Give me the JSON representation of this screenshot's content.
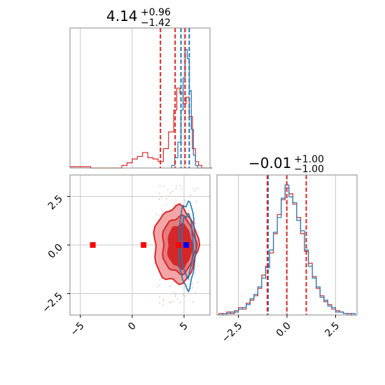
{
  "chart_data": [
    {
      "type": "histogram",
      "panel": "top-left marginal",
      "title_main": "4.14",
      "title_sup": "+0.96",
      "title_sub": "−1.42",
      "xlim": [
        -6,
        7.5
      ],
      "vlines_red": [
        2.72,
        4.14,
        5.1
      ],
      "vlines_blue": [
        4.7,
        5.5
      ],
      "series": [
        {
          "color": "#d62728",
          "bins": [
            [
              -6,
              0.01
            ],
            [
              -5,
              0.01
            ],
            [
              -4,
              0.0
            ],
            [
              -3,
              0.0
            ],
            [
              -2,
              0.0
            ],
            [
              -1,
              0.02
            ],
            [
              -0.5,
              0.04
            ],
            [
              0,
              0.07
            ],
            [
              0.5,
              0.09
            ],
            [
              1,
              0.12
            ],
            [
              1.5,
              0.08
            ],
            [
              2,
              0.07
            ],
            [
              2.5,
              0.05
            ],
            [
              3,
              0.15
            ],
            [
              3.5,
              0.28
            ],
            [
              4,
              0.45
            ],
            [
              4.3,
              0.62
            ],
            [
              4.6,
              0.58
            ],
            [
              4.9,
              0.5
            ],
            [
              5.2,
              0.55
            ],
            [
              5.5,
              0.4
            ],
            [
              5.8,
              0.15
            ],
            [
              6.1,
              0.05
            ],
            [
              6.4,
              0.02
            ],
            [
              6.7,
              0.0
            ]
          ]
        },
        {
          "color": "#1f77b4",
          "bins": [
            [
              3.8,
              0.02
            ],
            [
              4.1,
              0.08
            ],
            [
              4.4,
              0.2
            ],
            [
              4.7,
              0.45
            ],
            [
              4.9,
              0.7
            ],
            [
              5.1,
              0.92
            ],
            [
              5.3,
              0.85
            ],
            [
              5.5,
              0.6
            ],
            [
              5.7,
              0.3
            ],
            [
              5.9,
              0.1
            ],
            [
              6.1,
              0.02
            ],
            [
              6.3,
              0.0
            ]
          ]
        }
      ]
    },
    {
      "type": "scatter",
      "panel": "bottom-left 2D contour",
      "xlim": [
        -6,
        7.5
      ],
      "ylim": [
        -3.6,
        3.6
      ],
      "x_ticks": [
        "−5",
        "0",
        "5"
      ],
      "x_tick_values": [
        -5,
        0,
        5
      ],
      "y_ticks": [
        "2.5",
        "0.0",
        "−2.5"
      ],
      "y_tick_values": [
        2.5,
        0.0,
        -2.5
      ],
      "markers": [
        {
          "x": -3.8,
          "y": 0.0,
          "color": "#ff0000"
        },
        {
          "x": 1.1,
          "y": 0.0,
          "color": "#ff0000"
        },
        {
          "x": 4.5,
          "y": 0.0,
          "color": "#ff0000"
        },
        {
          "x": 5.2,
          "y": 0.0,
          "color": "#0000ff"
        }
      ],
      "contours_red": [
        {
          "cx": 4.2,
          "cy": 0.0,
          "rx": 2.1,
          "ry": 1.95,
          "fill": "#f4a6a7"
        },
        {
          "cx": 4.5,
          "cy": 0.0,
          "rx": 1.6,
          "ry": 1.45,
          "fill": "#e77b7d"
        },
        {
          "cx": 4.6,
          "cy": -0.05,
          "rx": 1.15,
          "ry": 1.1,
          "fill": "#d62728"
        }
      ],
      "contours_blue": [
        {
          "cx": 5.3,
          "cy": 0.0,
          "rx": 0.8,
          "ry": 2.2
        },
        {
          "cx": 5.3,
          "cy": 0.0,
          "rx": 0.55,
          "ry": 1.6
        }
      ]
    },
    {
      "type": "histogram",
      "panel": "bottom-right marginal",
      "title_main": "−0.01",
      "title_sup": "+1.00",
      "title_sub": "−1.00",
      "xlim": [
        -3.6,
        3.6
      ],
      "x_ticks": [
        "−2.5",
        "0.0",
        "2.5"
      ],
      "x_tick_values": [
        -2.5,
        0.0,
        2.5
      ],
      "vlines_red": [
        -1.01,
        -0.01,
        0.99
      ],
      "vlines_blue": [
        -1.01
      ],
      "series": [
        {
          "color": "#d62728",
          "bins": [
            [
              -3.5,
              0.01
            ],
            [
              -3.3,
              0.0
            ],
            [
              -3.1,
              0.02
            ],
            [
              -2.9,
              0.01
            ],
            [
              -2.7,
              0.03
            ],
            [
              -2.5,
              0.05
            ],
            [
              -2.3,
              0.04
            ],
            [
              -2.1,
              0.08
            ],
            [
              -1.9,
              0.1
            ],
            [
              -1.7,
              0.13
            ],
            [
              -1.5,
              0.18
            ],
            [
              -1.3,
              0.27
            ],
            [
              -1.1,
              0.33
            ],
            [
              -0.9,
              0.42
            ],
            [
              -0.7,
              0.55
            ],
            [
              -0.5,
              0.68
            ],
            [
              -0.3,
              0.78
            ],
            [
              -0.1,
              0.86
            ],
            [
              0.1,
              0.82
            ],
            [
              0.3,
              0.75
            ],
            [
              0.5,
              0.66
            ],
            [
              0.7,
              0.55
            ],
            [
              0.9,
              0.43
            ],
            [
              1.1,
              0.35
            ],
            [
              1.3,
              0.26
            ],
            [
              1.5,
              0.18
            ],
            [
              1.7,
              0.13
            ],
            [
              1.9,
              0.09
            ],
            [
              2.1,
              0.07
            ],
            [
              2.3,
              0.04
            ],
            [
              2.5,
              0.03
            ],
            [
              2.7,
              0.02
            ],
            [
              2.9,
              0.01
            ],
            [
              3.1,
              0.01
            ],
            [
              3.3,
              0.0
            ]
          ]
        },
        {
          "color": "#1f77b4",
          "bins": [
            [
              -3.5,
              0.0
            ],
            [
              -3.3,
              0.01
            ],
            [
              -3.1,
              0.01
            ],
            [
              -2.9,
              0.02
            ],
            [
              -2.7,
              0.02
            ],
            [
              -2.5,
              0.04
            ],
            [
              -2.3,
              0.05
            ],
            [
              -2.1,
              0.07
            ],
            [
              -1.9,
              0.11
            ],
            [
              -1.7,
              0.14
            ],
            [
              -1.5,
              0.19
            ],
            [
              -1.3,
              0.25
            ],
            [
              -1.1,
              0.32
            ],
            [
              -0.9,
              0.44
            ],
            [
              -0.7,
              0.56
            ],
            [
              -0.5,
              0.66
            ],
            [
              -0.3,
              0.79
            ],
            [
              -0.1,
              0.88
            ],
            [
              0.1,
              0.8
            ],
            [
              0.3,
              0.76
            ],
            [
              0.5,
              0.64
            ],
            [
              0.7,
              0.57
            ],
            [
              0.9,
              0.44
            ],
            [
              1.1,
              0.33
            ],
            [
              1.3,
              0.25
            ],
            [
              1.5,
              0.19
            ],
            [
              1.7,
              0.12
            ],
            [
              1.9,
              0.1
            ],
            [
              2.1,
              0.06
            ],
            [
              2.3,
              0.05
            ],
            [
              2.5,
              0.02
            ],
            [
              2.7,
              0.02
            ],
            [
              2.9,
              0.01
            ],
            [
              3.1,
              0.0
            ],
            [
              3.3,
              0.01
            ]
          ]
        }
      ]
    }
  ],
  "colors": {
    "red": "#d62728",
    "blue": "#1f77b4",
    "grid": "#c8c8c8",
    "spine": "#888888"
  }
}
